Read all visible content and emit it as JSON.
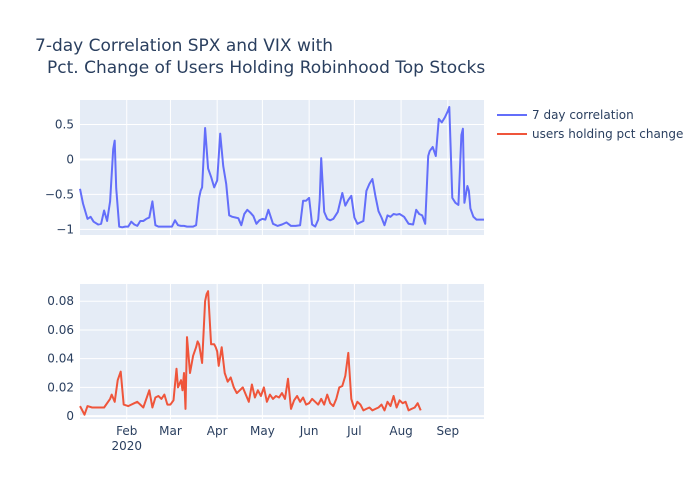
{
  "chart_data": {
    "type": "line",
    "title_line1": "7-day Correlation SPX and VIX with",
    "title_line2": "Pct. Change of Users Holding Robinhood Top Stocks",
    "legend_placement": "top-right",
    "x_range": [
      "2020-01-01",
      "2020-09-25"
    ],
    "x_ticks": [
      {
        "date": "2020-02-01",
        "label": "Feb",
        "sub": "2020"
      },
      {
        "date": "2020-03-01",
        "label": "Mar",
        "sub": ""
      },
      {
        "date": "2020-04-01",
        "label": "Apr",
        "sub": ""
      },
      {
        "date": "2020-05-01",
        "label": "May",
        "sub": ""
      },
      {
        "date": "2020-06-01",
        "label": "Jun",
        "sub": ""
      },
      {
        "date": "2020-07-01",
        "label": "Jul",
        "sub": ""
      },
      {
        "date": "2020-08-01",
        "label": "Aug",
        "sub": ""
      },
      {
        "date": "2020-09-01",
        "label": "Sep",
        "sub": ""
      }
    ],
    "subplots": [
      {
        "ylim": [
          -1.08,
          0.85
        ],
        "y_ticks": [
          {
            "v": 0.5,
            "label": "0.5"
          },
          {
            "v": 0,
            "label": "0"
          },
          {
            "v": -0.5,
            "label": "−0.5"
          },
          {
            "v": -1,
            "label": "−1"
          }
        ],
        "series": [
          {
            "name": "7 day correlation",
            "color": "#636efa",
            "x": [
              "2020-01-01",
              "2020-01-03",
              "2020-01-06",
              "2020-01-08",
              "2020-01-10",
              "2020-01-13",
              "2020-01-15",
              "2020-01-17",
              "2020-01-19",
              "2020-01-21",
              "2020-01-23",
              "2020-01-24",
              "2020-01-25",
              "2020-01-27",
              "2020-01-29",
              "2020-01-31",
              "2020-02-02",
              "2020-02-04",
              "2020-02-06",
              "2020-02-08",
              "2020-02-10",
              "2020-02-12",
              "2020-02-14",
              "2020-02-16",
              "2020-02-18",
              "2020-02-20",
              "2020-02-22",
              "2020-02-24",
              "2020-02-26",
              "2020-02-28",
              "2020-03-02",
              "2020-03-04",
              "2020-03-06",
              "2020-03-08",
              "2020-03-10",
              "2020-03-12",
              "2020-03-14",
              "2020-03-16",
              "2020-03-18",
              "2020-03-20",
              "2020-03-21",
              "2020-03-22",
              "2020-03-24",
              "2020-03-26",
              "2020-03-28",
              "2020-03-30",
              "2020-04-01",
              "2020-04-03",
              "2020-04-05",
              "2020-04-07",
              "2020-04-09",
              "2020-04-11",
              "2020-04-13",
              "2020-04-15",
              "2020-04-17",
              "2020-04-19",
              "2020-04-21",
              "2020-04-23",
              "2020-04-25",
              "2020-04-27",
              "2020-04-29",
              "2020-05-01",
              "2020-05-03",
              "2020-05-05",
              "2020-05-08",
              "2020-05-11",
              "2020-05-14",
              "2020-05-17",
              "2020-05-20",
              "2020-05-23",
              "2020-05-26",
              "2020-05-28",
              "2020-05-30",
              "2020-06-01",
              "2020-06-03",
              "2020-06-05",
              "2020-06-07",
              "2020-06-08",
              "2020-06-09",
              "2020-06-11",
              "2020-06-13",
              "2020-06-15",
              "2020-06-17",
              "2020-06-20",
              "2020-06-23",
              "2020-06-25",
              "2020-06-27",
              "2020-06-29",
              "2020-07-01",
              "2020-07-03",
              "2020-07-05",
              "2020-07-07",
              "2020-07-09",
              "2020-07-11",
              "2020-07-13",
              "2020-07-15",
              "2020-07-17",
              "2020-07-19",
              "2020-07-21",
              "2020-07-23",
              "2020-07-25",
              "2020-07-27",
              "2020-07-29",
              "2020-07-31",
              "2020-08-03",
              "2020-08-06",
              "2020-08-09",
              "2020-08-11",
              "2020-08-13",
              "2020-08-15",
              "2020-08-17",
              "2020-08-19",
              "2020-08-20",
              "2020-08-22",
              "2020-08-24",
              "2020-08-26",
              "2020-08-28",
              "2020-08-30",
              "2020-09-01",
              "2020-09-02",
              "2020-09-04",
              "2020-09-06",
              "2020-09-08",
              "2020-09-10",
              "2020-09-11",
              "2020-09-12",
              "2020-09-14",
              "2020-09-15",
              "2020-09-16",
              "2020-09-18",
              "2020-09-20",
              "2020-09-22",
              "2020-09-25"
            ],
            "y": [
              -0.42,
              -0.63,
              -0.85,
              -0.82,
              -0.89,
              -0.93,
              -0.92,
              -0.73,
              -0.88,
              -0.6,
              0.15,
              0.27,
              -0.41,
              -0.96,
              -0.97,
              -0.96,
              -0.96,
              -0.89,
              -0.93,
              -0.95,
              -0.88,
              -0.88,
              -0.85,
              -0.83,
              -0.6,
              -0.94,
              -0.96,
              -0.96,
              -0.96,
              -0.96,
              -0.96,
              -0.87,
              -0.94,
              -0.95,
              -0.95,
              -0.96,
              -0.96,
              -0.96,
              -0.94,
              -0.55,
              -0.45,
              -0.4,
              0.45,
              -0.13,
              -0.25,
              -0.4,
              -0.3,
              0.37,
              -0.09,
              -0.35,
              -0.8,
              -0.82,
              -0.83,
              -0.84,
              -0.94,
              -0.78,
              -0.72,
              -0.76,
              -0.81,
              -0.92,
              -0.87,
              -0.85,
              -0.86,
              -0.72,
              -0.92,
              -0.95,
              -0.93,
              -0.9,
              -0.95,
              -0.95,
              -0.94,
              -0.59,
              -0.59,
              -0.55,
              -0.93,
              -0.96,
              -0.86,
              -0.58,
              0.02,
              -0.75,
              -0.85,
              -0.87,
              -0.85,
              -0.75,
              -0.48,
              -0.66,
              -0.58,
              -0.52,
              -0.83,
              -0.92,
              -0.9,
              -0.88,
              -0.45,
              -0.35,
              -0.28,
              -0.53,
              -0.74,
              -0.83,
              -0.94,
              -0.8,
              -0.82,
              -0.78,
              -0.79,
              -0.78,
              -0.82,
              -0.92,
              -0.93,
              -0.72,
              -0.78,
              -0.8,
              -0.92,
              0.05,
              0.12,
              0.18,
              0.05,
              0.58,
              0.53,
              0.6,
              0.69,
              0.75,
              -0.55,
              -0.62,
              -0.65,
              0.35,
              0.44,
              -0.62,
              -0.38,
              -0.45,
              -0.7,
              -0.82,
              -0.86,
              -0.86,
              -0.86
            ]
          }
        ]
      },
      {
        "ylim": [
          -0.002,
          0.092
        ],
        "y_ticks": [
          {
            "v": 0,
            "label": "0"
          },
          {
            "v": 0.02,
            "label": "0.02"
          },
          {
            "v": 0.04,
            "label": "0.04"
          },
          {
            "v": 0.06,
            "label": "0.06"
          },
          {
            "v": 0.08,
            "label": "0.08"
          }
        ],
        "series": [
          {
            "name": "users holding pct change",
            "color": "#ef553b",
            "x": [
              "2020-01-01",
              "2020-01-02",
              "2020-01-04",
              "2020-01-06",
              "2020-01-09",
              "2020-01-13",
              "2020-01-17",
              "2020-01-21",
              "2020-01-22",
              "2020-01-24",
              "2020-01-26",
              "2020-01-28",
              "2020-01-30",
              "2020-02-02",
              "2020-02-04",
              "2020-02-06",
              "2020-02-08",
              "2020-02-10",
              "2020-02-12",
              "2020-02-14",
              "2020-02-16",
              "2020-02-18",
              "2020-02-20",
              "2020-02-22",
              "2020-02-24",
              "2020-02-26",
              "2020-02-28",
              "2020-03-01",
              "2020-03-03",
              "2020-03-05",
              "2020-03-06",
              "2020-03-08",
              "2020-03-09",
              "2020-03-10",
              "2020-03-11",
              "2020-03-12",
              "2020-03-14",
              "2020-03-16",
              "2020-03-18",
              "2020-03-19",
              "2020-03-20",
              "2020-03-22",
              "2020-03-24",
              "2020-03-25",
              "2020-03-26",
              "2020-03-28",
              "2020-03-30",
              "2020-03-31",
              "2020-04-01",
              "2020-04-02",
              "2020-04-04",
              "2020-04-06",
              "2020-04-08",
              "2020-04-10",
              "2020-04-12",
              "2020-04-14",
              "2020-04-16",
              "2020-04-18",
              "2020-04-20",
              "2020-04-22",
              "2020-04-24",
              "2020-04-26",
              "2020-04-28",
              "2020-04-30",
              "2020-05-02",
              "2020-05-04",
              "2020-05-06",
              "2020-05-08",
              "2020-05-10",
              "2020-05-12",
              "2020-05-14",
              "2020-05-16",
              "2020-05-18",
              "2020-05-20",
              "2020-05-22",
              "2020-05-24",
              "2020-05-26",
              "2020-05-28",
              "2020-05-30",
              "2020-06-01",
              "2020-06-03",
              "2020-06-05",
              "2020-06-07",
              "2020-06-09",
              "2020-06-11",
              "2020-06-13",
              "2020-06-15",
              "2020-06-17",
              "2020-06-19",
              "2020-06-21",
              "2020-06-23",
              "2020-06-25",
              "2020-06-27",
              "2020-06-29",
              "2020-07-01",
              "2020-07-03",
              "2020-07-05",
              "2020-07-07",
              "2020-07-09",
              "2020-07-11",
              "2020-07-13",
              "2020-07-15",
              "2020-07-17",
              "2020-07-19",
              "2020-07-21",
              "2020-07-23",
              "2020-07-25",
              "2020-07-27",
              "2020-07-29",
              "2020-07-31",
              "2020-08-02",
              "2020-08-04",
              "2020-08-06",
              "2020-08-08",
              "2020-08-10",
              "2020-08-12",
              "2020-08-14"
            ],
            "y": [
              0.007,
              0.005,
              0.001,
              0.007,
              0.006,
              0.006,
              0.006,
              0.012,
              0.015,
              0.01,
              0.025,
              0.031,
              0.008,
              0.007,
              0.008,
              0.009,
              0.01,
              0.008,
              0.006,
              0.012,
              0.018,
              0.006,
              0.013,
              0.014,
              0.012,
              0.015,
              0.008,
              0.008,
              0.011,
              0.033,
              0.02,
              0.025,
              0.018,
              0.03,
              0.005,
              0.055,
              0.03,
              0.042,
              0.048,
              0.052,
              0.05,
              0.037,
              0.08,
              0.085,
              0.087,
              0.05,
              0.05,
              0.048,
              0.045,
              0.035,
              0.048,
              0.03,
              0.024,
              0.027,
              0.02,
              0.016,
              0.018,
              0.02,
              0.015,
              0.01,
              0.022,
              0.013,
              0.018,
              0.014,
              0.02,
              0.01,
              0.015,
              0.012,
              0.014,
              0.013,
              0.016,
              0.012,
              0.026,
              0.005,
              0.011,
              0.014,
              0.01,
              0.013,
              0.008,
              0.009,
              0.012,
              0.01,
              0.008,
              0.012,
              0.008,
              0.015,
              0.009,
              0.007,
              0.012,
              0.02,
              0.021,
              0.028,
              0.044,
              0.012,
              0.005,
              0.01,
              0.008,
              0.004,
              0.005,
              0.006,
              0.004,
              0.005,
              0.006,
              0.008,
              0.004,
              0.01,
              0.007,
              0.014,
              0.006,
              0.011,
              0.009,
              0.01,
              0.004,
              0.005,
              0.006,
              0.009,
              0.004
            ]
          }
        ]
      }
    ]
  }
}
